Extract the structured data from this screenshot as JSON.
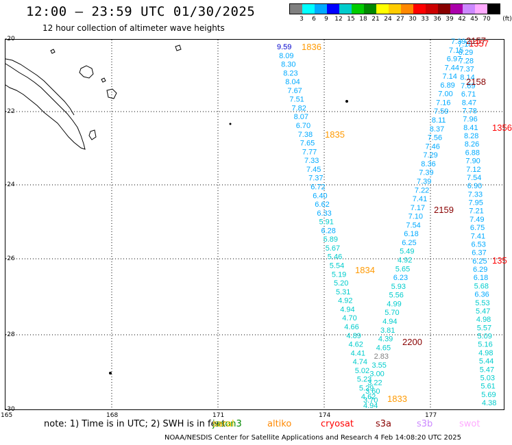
{
  "header": {
    "title": "12:00 — 23:59 UTC 01/30/2025",
    "subtitle": "12 hour collection of altimeter wave heights"
  },
  "legend": {
    "unit": "(ft)",
    "colors": [
      "#808080",
      "#00ffff",
      "#00aaff",
      "#0000ff",
      "#00cccc",
      "#00cc00",
      "#008800",
      "#ffff00",
      "#ffcc00",
      "#ff8800",
      "#ff0000",
      "#cc0000",
      "#880000",
      "#aa00aa",
      "#cc88ff",
      "#ffaaff",
      "#000000"
    ],
    "ticks": [
      "3",
      "6",
      "9",
      "12",
      "15",
      "18",
      "21",
      "24",
      "27",
      "30",
      "33",
      "36",
      "39",
      "42",
      "45",
      "70"
    ]
  },
  "axes": {
    "lat_labels": [
      "-20",
      "-22",
      "-24",
      "-26",
      "-28",
      "-30"
    ],
    "lon_labels": [
      "165",
      "168",
      "171",
      "174",
      "177"
    ]
  },
  "passes": [
    {
      "id": "1836",
      "color": "#ff9900"
    },
    {
      "id": "1835",
      "color": "#ff9900"
    },
    {
      "id": "1834",
      "color": "#ff9900"
    },
    {
      "id": "1833",
      "color": "#ff9900"
    },
    {
      "id": "2157",
      "color": "#880000"
    },
    {
      "id": "1357",
      "color": "#ff0000"
    },
    {
      "id": "2158",
      "color": "#880000"
    },
    {
      "id": "1356",
      "color": "#ff0000"
    },
    {
      "id": "2159",
      "color": "#880000"
    },
    {
      "id": "135",
      "color": "#ff0000"
    },
    {
      "id": "2200",
      "color": "#880000"
    }
  ],
  "track_a": [
    "9.59",
    "8.09",
    "8.30",
    "8.23",
    "8.04",
    "7.67",
    "7.51",
    "7.82",
    "8.07",
    "6.70",
    "7.38",
    "7.65",
    "7.77",
    "7.33",
    "7.45",
    "7.37",
    "6.72",
    "6.40",
    "6.62",
    "6.33",
    "5.91",
    "6.28",
    "5.89",
    "5.67",
    "5.46",
    "5.54",
    "5.19",
    "5.20",
    "5.31",
    "4.92",
    "4.94",
    "4.70",
    "4.66",
    "4.89",
    "4.62",
    "4.41",
    "4.74",
    "5.02",
    "5.23",
    "5.29",
    "4.62",
    "4.94"
  ],
  "track_b": [
    "7.39",
    "7.15",
    "6.97",
    "7.44",
    "7.14",
    "6.89",
    "7.00",
    "7.16",
    "7.59",
    "8.11",
    "8.37",
    "7.56",
    "7.46",
    "7.29",
    "8.36",
    "7.39",
    "7.39",
    "7.22",
    "7.41",
    "7.17",
    "7.10",
    "7.54",
    "6.18",
    "6.25",
    "5.49",
    "4.92",
    "5.65",
    "6.23",
    "5.93",
    "5.56",
    "4.99",
    "5.70",
    "4.94",
    "3.81",
    "4.39",
    "4.65",
    "2.83",
    "3.55",
    "3.00",
    "3.22",
    "3.60",
    "3.70"
  ],
  "track_c": [
    "7.18",
    "6.29",
    "7.28",
    "7.37",
    "8.14",
    "7.69",
    "6.71",
    "8.47",
    "7.78",
    "7.96",
    "8.41",
    "8.28",
    "8.26",
    "6.88",
    "7.90",
    "7.12",
    "7.54",
    "6.90",
    "7.33",
    "7.95",
    "7.21",
    "7.49",
    "6.75",
    "7.41",
    "6.53",
    "6.37",
    "6.25",
    "6.29",
    "6.18",
    "5.68",
    "6.36",
    "5.53",
    "5.47",
    "4.98",
    "5.57",
    "5.09",
    "5.16",
    "4.98",
    "5.44",
    "5.47",
    "5.03",
    "5.61",
    "5.69",
    "4.38"
  ],
  "satellites": [
    {
      "name": "jason3",
      "color": "#008800"
    },
    {
      "name": "saral",
      "color": "#ffcc00"
    },
    {
      "name": "altiko",
      "color": "#ff8800"
    },
    {
      "name": "cryosat",
      "color": "#ff0000"
    },
    {
      "name": "s3a",
      "color": "#880000"
    },
    {
      "name": "s3b",
      "color": "#cc88ff"
    },
    {
      "name": "swot",
      "color": "#ffaaff"
    }
  ],
  "note": "note:  1) Time is in UTC;  2) SWH is in feet",
  "footer": "NOAA/NESDIS Center for Satellite Applications and Research     4 Feb 14:08:20 UTC 2025"
}
